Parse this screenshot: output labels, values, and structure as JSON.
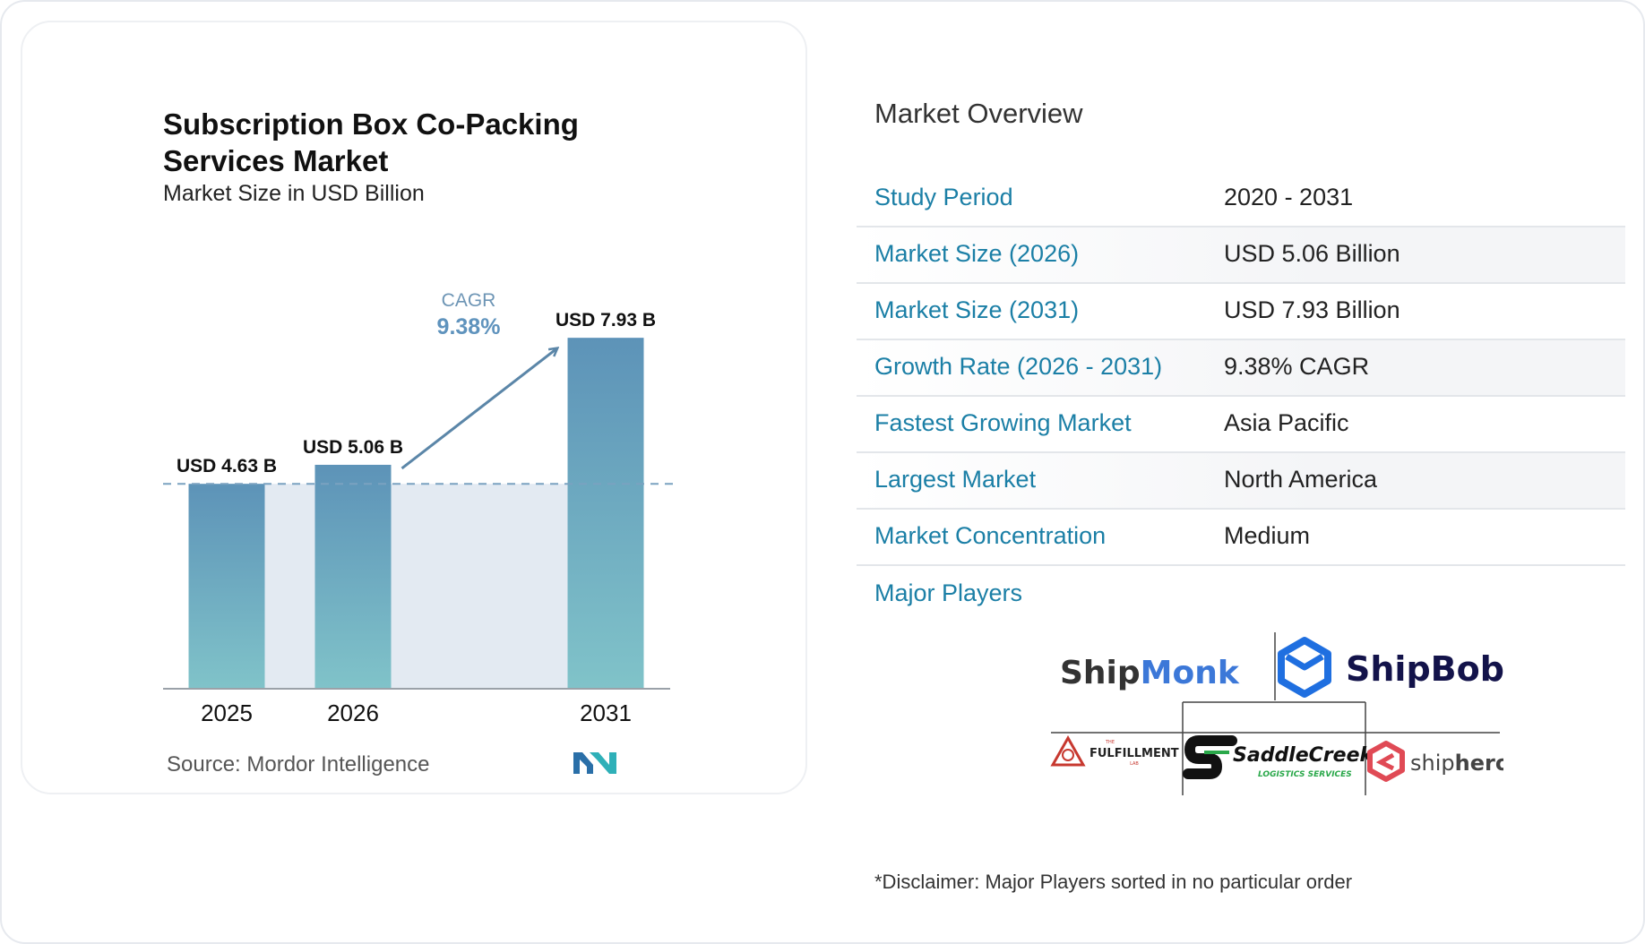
{
  "chart_data": {
    "type": "bar",
    "title": "Subscription Box Co-Packing Services Market",
    "subtitle": "Market Size in USD Billion",
    "categories": [
      "2025",
      "2026",
      "2031"
    ],
    "values": [
      4.63,
      5.06,
      7.93
    ],
    "data_labels": [
      "USD 4.63 B",
      "USD 5.06 B",
      "USD 7.93 B"
    ],
    "ylim": [
      0,
      8.5
    ],
    "grid": false,
    "annotation": {
      "label": "CAGR",
      "value": "9.38%"
    },
    "colors": {
      "bar_top": "#5d93b8",
      "bar_bottom": "#80c3c9",
      "band": "#e3eaf2",
      "arrow": "#5b86a8",
      "cagr_value": "#5f93bd"
    }
  },
  "source": "Source:  Mordor Intelligence",
  "overview": {
    "heading": "Market Overview",
    "rows": [
      {
        "label": "Study Period",
        "value": "2020 - 2031"
      },
      {
        "label": "Market Size (2026)",
        "value": "USD 5.06 Billion"
      },
      {
        "label": "Market Size (2031)",
        "value": "USD 7.93 Billion"
      },
      {
        "label": "Growth Rate (2026 - 2031)",
        "value": "9.38% CAGR"
      },
      {
        "label": "Fastest Growing Market",
        "value": "Asia Pacific"
      },
      {
        "label": "Largest Market",
        "value": "North America"
      },
      {
        "label": "Market Concentration",
        "value": "Medium"
      }
    ]
  },
  "players": {
    "heading": "Major Players",
    "logos": {
      "shipmonk_a": "Ship",
      "shipmonk_b": "Monk",
      "shipbob": "ShipBob",
      "ffl_top": "THE",
      "ffl_main": "FULFILLMENT",
      "ffl_bottom": "LAB",
      "saddle": "SaddleCreek",
      "saddle_sub": "LOGISTICS SERVICES",
      "shiphero_a": "ship",
      "shiphero_b": "hero"
    },
    "disclaimer": "*Disclaimer: Major Players sorted in no particular order"
  }
}
